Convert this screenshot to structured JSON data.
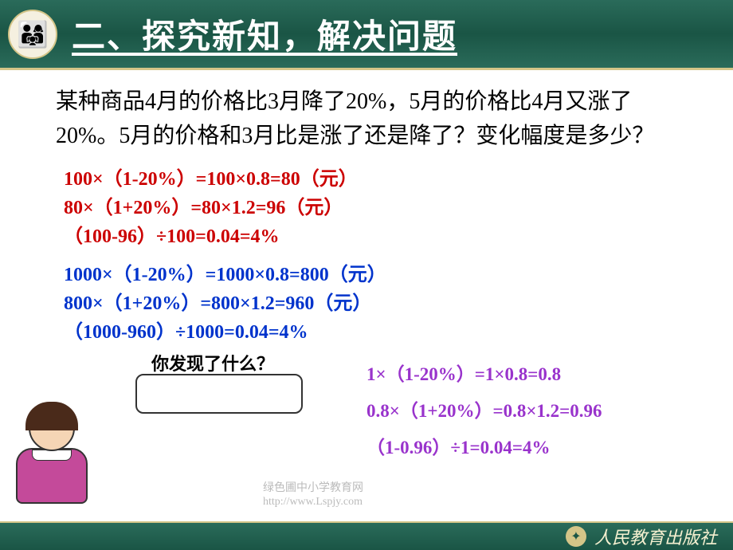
{
  "header": {
    "title": "二、探究新知，解决问题",
    "icon_emoji": "👨‍👩‍👧"
  },
  "problem": {
    "text": "某种商品4月的价格比3月降了20%，5月的价格比4月又涨了20%。5月的价格和3月比是涨了还是降了？变化幅度是多少？"
  },
  "calc_red": {
    "line1": "100×（1-20%）=100×0.8=80（元）",
    "line2": "80×（1+20%）=80×1.2=96（元）",
    "line3": "（100-96）÷100=0.04=4%"
  },
  "calc_blue": {
    "line1": "1000×（1-20%）=1000×0.8=800（元）",
    "line2": "800×（1+20%）=800×1.2=960（元）",
    "line3": "（1000-960）÷1000=0.04=4%"
  },
  "discover": {
    "question": "你发现了什么？"
  },
  "calc_purple": {
    "line1": "1×（1-20%）=1×0.8=0.8",
    "line2": "0.8×（1+20%）=0.8×1.2=0.96",
    "line3": "（1-0.96）÷1=0.04=4%"
  },
  "watermark": {
    "line1": "绿色圃中小学教育网",
    "line2": "http://www.Lspjy.com"
  },
  "footer": {
    "publisher": "人民教育出版社"
  },
  "colors": {
    "header_bg": "#1a5545",
    "accent": "#d4c588",
    "red": "#cc0000",
    "blue": "#0033cc",
    "purple": "#9933cc",
    "teacher_shirt": "#c44a9a"
  }
}
